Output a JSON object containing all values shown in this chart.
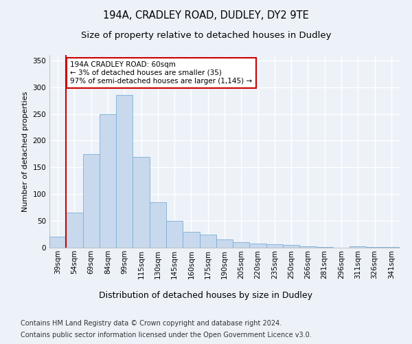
{
  "title1": "194A, CRADLEY ROAD, DUDLEY, DY2 9TE",
  "title2": "Size of property relative to detached houses in Dudley",
  "xlabel": "Distribution of detached houses by size in Dudley",
  "ylabel": "Number of detached properties",
  "categories": [
    "39sqm",
    "54sqm",
    "69sqm",
    "84sqm",
    "99sqm",
    "115sqm",
    "130sqm",
    "145sqm",
    "160sqm",
    "175sqm",
    "190sqm",
    "205sqm",
    "220sqm",
    "235sqm",
    "250sqm",
    "266sqm",
    "281sqm",
    "296sqm",
    "311sqm",
    "326sqm",
    "341sqm"
  ],
  "values": [
    20,
    65,
    175,
    250,
    285,
    170,
    85,
    50,
    30,
    25,
    15,
    10,
    8,
    6,
    5,
    3,
    1,
    0,
    3,
    1,
    1
  ],
  "bar_color": "#c8d9ee",
  "bar_edge_color": "#7aafd4",
  "vline_color": "#cc0000",
  "annotation_text": "194A CRADLEY ROAD: 60sqm\n← 3% of detached houses are smaller (35)\n97% of semi-detached houses are larger (1,145) →",
  "annotation_box_color": "#ffffff",
  "annotation_box_edge": "#cc0000",
  "ylim": [
    0,
    360
  ],
  "yticks": [
    0,
    50,
    100,
    150,
    200,
    250,
    300,
    350
  ],
  "footer1": "Contains HM Land Registry data © Crown copyright and database right 2024.",
  "footer2": "Contains public sector information licensed under the Open Government Licence v3.0.",
  "background_color": "#edf2f9",
  "plot_background": "#edf2f9",
  "grid_color": "#ffffff",
  "title1_fontsize": 10.5,
  "title2_fontsize": 9.5,
  "xlabel_fontsize": 9,
  "ylabel_fontsize": 8,
  "tick_fontsize": 7.5,
  "footer_fontsize": 7
}
